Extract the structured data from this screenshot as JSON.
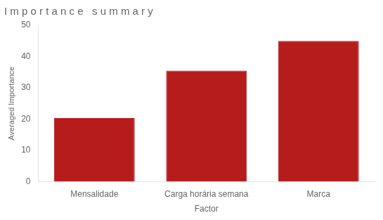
{
  "chart_data": {
    "type": "bar",
    "title": "I m p o r t a n c e   s u m m a r y",
    "categories": [
      "Mensalidade",
      "Carga horária semana",
      "Marca"
    ],
    "values": [
      20.3,
      35.5,
      45.0
    ],
    "color": "#B71C1C",
    "xlabel": "Factor",
    "ylabel": "Averaged Importance",
    "ylim": [
      0,
      50
    ],
    "yticks": [
      0,
      10,
      20,
      30,
      40,
      50
    ],
    "grid": false
  }
}
